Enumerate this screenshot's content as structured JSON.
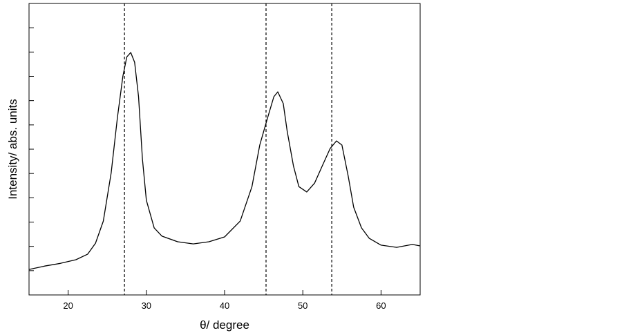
{
  "chart_data": {
    "type": "line",
    "x_label": "θ/ degree",
    "y_label": "Intensity/ abs. units",
    "x": [
      15,
      17,
      19,
      21,
      22.5,
      23.5,
      24.5,
      25.5,
      26.3,
      27,
      27.5,
      28,
      28.5,
      29,
      29.5,
      30,
      31,
      32,
      34,
      36,
      38,
      40,
      42,
      43.5,
      44.5,
      45.5,
      46.3,
      46.8,
      47.5,
      48,
      48.8,
      49.5,
      50.5,
      51.5,
      52.5,
      53.5,
      54.3,
      55,
      55.8,
      56.5,
      57.5,
      58.5,
      60,
      62,
      64,
      65
    ],
    "series": [
      {
        "color": "#000000",
        "values": [
          1.05,
          1.19,
          1.3,
          1.45,
          1.68,
          2.13,
          3.04,
          5.03,
          7.3,
          9.0,
          9.8,
          9.98,
          9.58,
          8.16,
          5.6,
          3.9,
          2.76,
          2.42,
          2.19,
          2.1,
          2.19,
          2.39,
          3.04,
          4.46,
          6.17,
          7.3,
          8.16,
          8.36,
          7.88,
          6.74,
          5.32,
          4.46,
          4.24,
          4.6,
          5.32,
          6.03,
          6.34,
          6.17,
          4.89,
          3.61,
          2.76,
          2.33,
          2.05,
          1.96,
          2.08,
          2.02
        ]
      }
    ],
    "reference_lines": [
      27.2,
      45.3,
      53.7
    ],
    "xlim": [
      15,
      65
    ],
    "xticks": [
      20,
      30,
      40,
      50,
      60
    ],
    "ylim": [
      0,
      12
    ],
    "yticks": [
      1,
      2,
      3,
      4,
      5,
      6,
      7,
      8,
      9,
      10,
      11
    ]
  }
}
